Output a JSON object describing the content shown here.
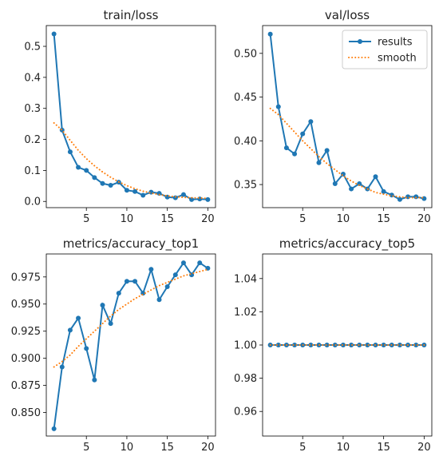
{
  "colors": {
    "results": "#1f77b4",
    "smooth": "#ff7f0e",
    "axis": "#000000"
  },
  "legend": {
    "placement": "top-right",
    "panel": 1,
    "entries": [
      "results",
      "smooth"
    ]
  },
  "chart_data": [
    {
      "type": "line",
      "title": "train/loss",
      "xlim": [
        0.05,
        20.95
      ],
      "ylim": [
        -0.02,
        0.567
      ],
      "xticks": [
        5,
        10,
        15,
        20
      ],
      "yticks": [
        0.0,
        0.1,
        0.2,
        0.3,
        0.4,
        0.5
      ],
      "ytick_decimals": 1,
      "x": [
        1,
        2,
        3,
        4,
        5,
        6,
        7,
        8,
        9,
        10,
        11,
        12,
        13,
        14,
        15,
        16,
        17,
        18,
        19,
        20
      ],
      "series": [
        {
          "name": "results",
          "style": "solid-markers",
          "values": [
            0.54,
            0.23,
            0.16,
            0.11,
            0.1,
            0.077,
            0.058,
            0.052,
            0.062,
            0.036,
            0.032,
            0.02,
            0.03,
            0.026,
            0.014,
            0.012,
            0.022,
            0.006,
            0.008,
            0.006
          ]
        },
        {
          "name": "smooth",
          "style": "dotted",
          "values": [
            0.253,
            0.23,
            0.197,
            0.165,
            0.138,
            0.115,
            0.095,
            0.078,
            0.063,
            0.051,
            0.041,
            0.033,
            0.027,
            0.022,
            0.018,
            0.015,
            0.013,
            0.012,
            0.011,
            0.01
          ]
        }
      ]
    },
    {
      "type": "line",
      "title": "val/loss",
      "xlim": [
        0.05,
        20.95
      ],
      "ylim": [
        0.3236,
        0.5318
      ],
      "xticks": [
        5,
        10,
        15,
        20
      ],
      "yticks": [
        0.35,
        0.4,
        0.45,
        0.5
      ],
      "ytick_decimals": 2,
      "x": [
        1,
        2,
        3,
        4,
        5,
        6,
        7,
        8,
        9,
        10,
        11,
        12,
        13,
        14,
        15,
        16,
        17,
        18,
        19,
        20
      ],
      "series": [
        {
          "name": "results",
          "style": "solid-markers",
          "values": [
            0.522,
            0.439,
            0.392,
            0.385,
            0.408,
            0.422,
            0.375,
            0.389,
            0.351,
            0.362,
            0.345,
            0.351,
            0.345,
            0.359,
            0.342,
            0.338,
            0.333,
            0.336,
            0.336,
            0.334
          ]
        },
        {
          "name": "smooth",
          "style": "dotted",
          "values": [
            0.437,
            0.43,
            0.42,
            0.41,
            0.4,
            0.391,
            0.382,
            0.374,
            0.367,
            0.36,
            0.354,
            0.349,
            0.345,
            0.341,
            0.339,
            0.337,
            0.336,
            0.335,
            0.335,
            0.335
          ]
        }
      ]
    },
    {
      "type": "line",
      "title": "metrics/accuracy_top1",
      "xlim": [
        0.05,
        20.95
      ],
      "ylim": [
        0.8283,
        0.9962
      ],
      "xticks": [
        5,
        10,
        15,
        20
      ],
      "yticks": [
        0.85,
        0.875,
        0.9,
        0.925,
        0.95,
        0.975
      ],
      "ytick_decimals": 3,
      "x": [
        1,
        2,
        3,
        4,
        5,
        6,
        7,
        8,
        9,
        10,
        11,
        12,
        13,
        14,
        15,
        16,
        17,
        18,
        19,
        20
      ],
      "series": [
        {
          "name": "results",
          "style": "solid-markers",
          "values": [
            0.835,
            0.892,
            0.926,
            0.937,
            0.909,
            0.88,
            0.949,
            0.932,
            0.96,
            0.971,
            0.971,
            0.96,
            0.982,
            0.954,
            0.966,
            0.977,
            0.988,
            0.977,
            0.988,
            0.983
          ]
        },
        {
          "name": "smooth",
          "style": "dotted",
          "values": [
            0.892,
            0.897,
            0.903,
            0.911,
            0.918,
            0.925,
            0.932,
            0.939,
            0.945,
            0.95,
            0.955,
            0.959,
            0.963,
            0.967,
            0.97,
            0.973,
            0.976,
            0.978,
            0.98,
            0.982
          ]
        }
      ]
    },
    {
      "type": "line",
      "title": "metrics/accuracy_top5",
      "xlim": [
        0.05,
        20.95
      ],
      "ylim": [
        0.9452,
        1.0548
      ],
      "xticks": [
        5,
        10,
        15,
        20
      ],
      "yticks": [
        0.96,
        0.98,
        1.0,
        1.02,
        1.04
      ],
      "ytick_decimals": 2,
      "x": [
        1,
        2,
        3,
        4,
        5,
        6,
        7,
        8,
        9,
        10,
        11,
        12,
        13,
        14,
        15,
        16,
        17,
        18,
        19,
        20
      ],
      "series": [
        {
          "name": "results",
          "style": "solid-markers",
          "values": [
            1,
            1,
            1,
            1,
            1,
            1,
            1,
            1,
            1,
            1,
            1,
            1,
            1,
            1,
            1,
            1,
            1,
            1,
            1,
            1
          ]
        },
        {
          "name": "smooth",
          "style": "dotted",
          "values": [
            1,
            1,
            1,
            1,
            1,
            1,
            1,
            1,
            1,
            1,
            1,
            1,
            1,
            1,
            1,
            1,
            1,
            1,
            1,
            1
          ]
        }
      ]
    }
  ]
}
